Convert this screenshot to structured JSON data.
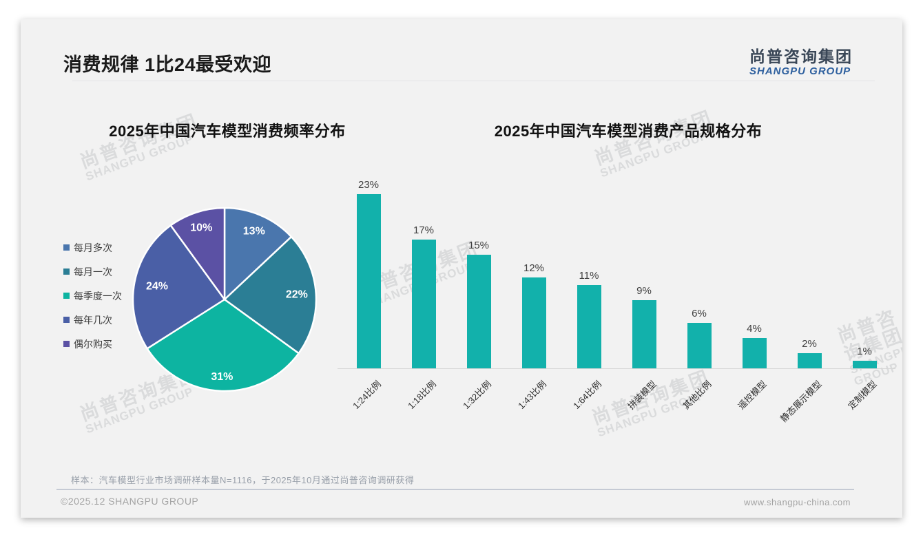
{
  "slide": {
    "title": "消费规律 1比24最受欢迎",
    "logo": {
      "cn": "尚普咨询集团",
      "en": "SHANGPU GROUP"
    },
    "watermark": {
      "cn": "尚普咨询集团",
      "en": "SHANGPU GROUP"
    },
    "footnote": "样本：汽车模型行业市场调研样本量N=1116，于2025年10月通过尚普咨询调研获得",
    "copyright": "©2025.12 SHANGPU GROUP",
    "website": "www.shangpu-china.com"
  },
  "chart_data": [
    {
      "type": "pie",
      "title": "2025年中国汽车模型消费频率分布",
      "legend_position": "left",
      "start_angle_deg": -90,
      "direction": "clockwise",
      "value_suffix": "%",
      "slices": [
        {
          "label": "每月多次",
          "value": 13,
          "color": "#4a76ad"
        },
        {
          "label": "每月一次",
          "value": 22,
          "color": "#2b7e95"
        },
        {
          "label": "每季度一次",
          "value": 31,
          "color": "#0db4a1"
        },
        {
          "label": "每年几次",
          "value": 24,
          "color": "#4a5fa6"
        },
        {
          "label": "偶尔购买",
          "value": 10,
          "color": "#5b51a4"
        }
      ]
    },
    {
      "type": "bar",
      "title": "2025年中国汽车模型消费产品规格分布",
      "categories": [
        "1:24比例",
        "1:18比例",
        "1:32比例",
        "1:43比例",
        "1:64比例",
        "拼装模型",
        "其他比例",
        "遥控模型",
        "静态展示模型",
        "定制模型"
      ],
      "values": [
        23,
        17,
        15,
        12,
        11,
        9,
        6,
        4,
        2,
        1
      ],
      "value_suffix": "%",
      "bar_color": "#12b1ab",
      "xlabel": "",
      "ylabel": "",
      "ylim": [
        0,
        25
      ],
      "grid": false,
      "x_label_rotation_deg": 45
    }
  ]
}
